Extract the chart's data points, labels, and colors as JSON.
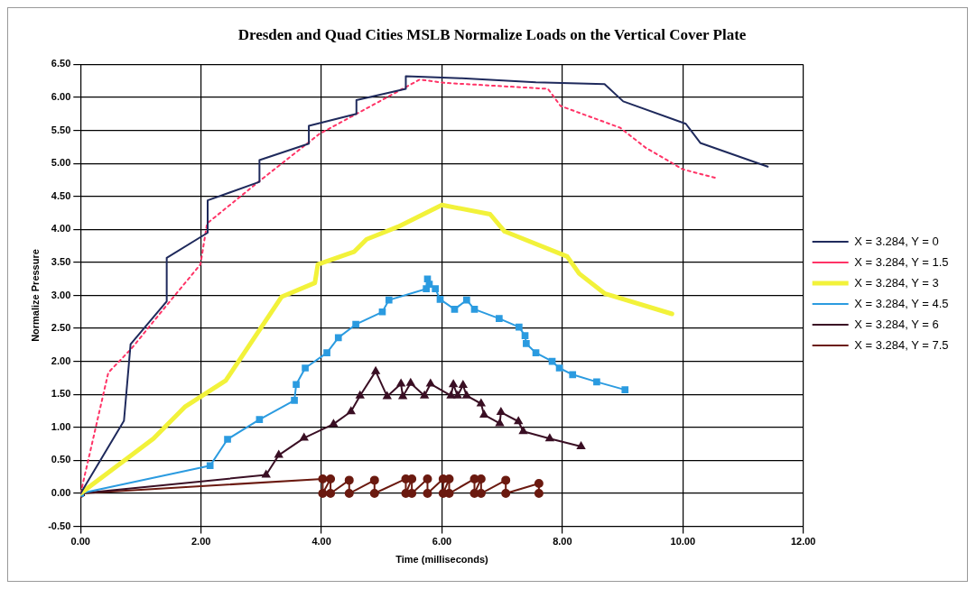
{
  "chart_data": {
    "type": "line",
    "title": "Dresden and Quad Cities MSLB Normalize Loads on the Vertical Cover Plate",
    "xlabel": "Time (milliseconds)",
    "ylabel": "Normalize Pressure",
    "xlim": [
      0,
      12
    ],
    "xticks": [
      {
        "value": 0,
        "label": "0.00"
      },
      {
        "value": 2,
        "label": "2.00"
      },
      {
        "value": 4,
        "label": "4.00"
      },
      {
        "value": 6,
        "label": "6.00"
      },
      {
        "value": 8,
        "label": "8.00"
      },
      {
        "value": 10,
        "label": "10.00"
      },
      {
        "value": 12,
        "label": "12.00"
      }
    ],
    "ylim": [
      -0.5,
      6.5
    ],
    "yticks": [
      {
        "value": -0.5,
        "label": "-0.50"
      },
      {
        "value": 0,
        "label": "0.00"
      },
      {
        "value": 0.5,
        "label": "0.50"
      },
      {
        "value": 1,
        "label": "1.00"
      },
      {
        "value": 1.5,
        "label": "1.50"
      },
      {
        "value": 2,
        "label": "2.00"
      },
      {
        "value": 2.5,
        "label": "2.50"
      },
      {
        "value": 3,
        "label": "3.00"
      },
      {
        "value": 3.5,
        "label": "3.50"
      },
      {
        "value": 4,
        "label": "4.00"
      },
      {
        "value": 4.5,
        "label": "4.50"
      },
      {
        "value": 5,
        "label": "5.00"
      },
      {
        "value": 5.5,
        "label": "5.50"
      },
      {
        "value": 6,
        "label": "6.00"
      },
      {
        "value": 6.5,
        "label": "6.50"
      }
    ],
    "grid": true,
    "legend": "right",
    "series": [
      {
        "name": "X = 3.284, Y = 0",
        "color": "#1f2a5c",
        "marker": "none",
        "line_style": "solid",
        "x": [
          0,
          0.72,
          0.83,
          1.06,
          1.43,
          1.43,
          2.11,
          2.11,
          2.97,
          2.97,
          3.79,
          3.79,
          4.58,
          4.58,
          5.4,
          5.4,
          5.71,
          6.33,
          7.56,
          8.7,
          9.01,
          10.05,
          10.29,
          11.41
        ],
        "values": [
          0,
          1.1,
          2.26,
          2.51,
          2.91,
          3.57,
          3.95,
          4.44,
          4.72,
          5.05,
          5.3,
          5.57,
          5.75,
          5.96,
          6.13,
          6.32,
          6.31,
          6.29,
          6.23,
          6.2,
          5.94,
          5.6,
          5.31,
          4.95
        ]
      },
      {
        "name": "X = 3.284, Y = 1.5",
        "color": "#ff3366",
        "marker": "none",
        "line_style": "dotted",
        "x": [
          0,
          0.46,
          0.85,
          1.42,
          1.99,
          2.1,
          2.98,
          3.97,
          4.54,
          5.63,
          6.05,
          7.76,
          7.97,
          8.96,
          9.38,
          10,
          10.55
        ],
        "values": [
          0,
          1.83,
          2.2,
          2.84,
          3.47,
          4.09,
          4.74,
          5.45,
          5.73,
          6.27,
          6.22,
          6.13,
          5.87,
          5.54,
          5.24,
          4.91,
          4.78
        ]
      },
      {
        "name": "X = 3.284, Y = 3",
        "color": "#f2f23a",
        "marker": "none",
        "line_style": "solid",
        "x": [
          0,
          1.21,
          1.73,
          2.41,
          3.34,
          3.89,
          3.94,
          4.54,
          4.75,
          5.27,
          6,
          6.8,
          7.04,
          8.08,
          8.28,
          8.7,
          9.82
        ],
        "values": [
          0,
          0.83,
          1.31,
          1.71,
          2.98,
          3.19,
          3.47,
          3.66,
          3.85,
          4.04,
          4.37,
          4.23,
          3.97,
          3.59,
          3.33,
          3.03,
          2.72
        ]
      },
      {
        "name": "X = 3.284, Y = 4.5",
        "color": "#2b9be0",
        "marker": "square",
        "line_style": "solid",
        "x": [
          0,
          2.15,
          2.44,
          2.97,
          3.55,
          3.58,
          3.73,
          4.09,
          4.28,
          4.57,
          5.01,
          5.12,
          5.74,
          5.76,
          5.79,
          5.89,
          5.97,
          6.21,
          6.41,
          6.54,
          6.95,
          7.28,
          7.38,
          7.4,
          7.56,
          7.83,
          7.95,
          8.17,
          8.57,
          9.04
        ],
        "values": [
          0,
          0.42,
          0.82,
          1.12,
          1.41,
          1.65,
          1.9,
          2.13,
          2.36,
          2.56,
          2.75,
          2.93,
          3.1,
          3.25,
          3.17,
          3.1,
          2.94,
          2.79,
          2.93,
          2.79,
          2.65,
          2.52,
          2.39,
          2.27,
          2.13,
          2,
          1.9,
          1.8,
          1.69,
          1.57
        ]
      },
      {
        "name": "X = 3.284, Y = 6",
        "color": "#3a0f24",
        "marker": "triangle",
        "line_style": "solid",
        "x": [
          0,
          3.08,
          3.29,
          3.71,
          4.2,
          4.49,
          4.64,
          4.9,
          5.09,
          5.32,
          5.35,
          5.48,
          5.71,
          5.81,
          6.15,
          6.19,
          6.26,
          6.35,
          6.41,
          6.65,
          6.7,
          6.96,
          6.98,
          7.27,
          7.35,
          7.79,
          8.31
        ],
        "values": [
          0,
          0.28,
          0.58,
          0.84,
          1.05,
          1.24,
          1.48,
          1.85,
          1.47,
          1.66,
          1.47,
          1.67,
          1.48,
          1.66,
          1.48,
          1.65,
          1.48,
          1.64,
          1.48,
          1.36,
          1.19,
          1.06,
          1.23,
          1.09,
          0.94,
          0.83,
          0.71
        ]
      },
      {
        "name": "X = 3.284, Y = 7.5",
        "color": "#6b1a10",
        "marker": "circle",
        "line_style": "solid",
        "x": [
          0,
          4.02,
          4.02,
          4.15,
          4.15,
          4.46,
          4.46,
          4.88,
          4.88,
          5.4,
          5.4,
          5.5,
          5.5,
          5.76,
          5.76,
          6.02,
          6.02,
          6.12,
          6.12,
          6.54,
          6.54,
          6.65,
          6.65,
          7.06,
          7.06,
          7.61,
          7.61
        ],
        "values": [
          0,
          0.22,
          0,
          0.22,
          0,
          0.2,
          0,
          0.2,
          0,
          0.22,
          0,
          0.22,
          0,
          0.22,
          0,
          0.22,
          0,
          0.22,
          0,
          0.22,
          0,
          0.22,
          0,
          0.2,
          0,
          0.15,
          0
        ]
      }
    ]
  }
}
